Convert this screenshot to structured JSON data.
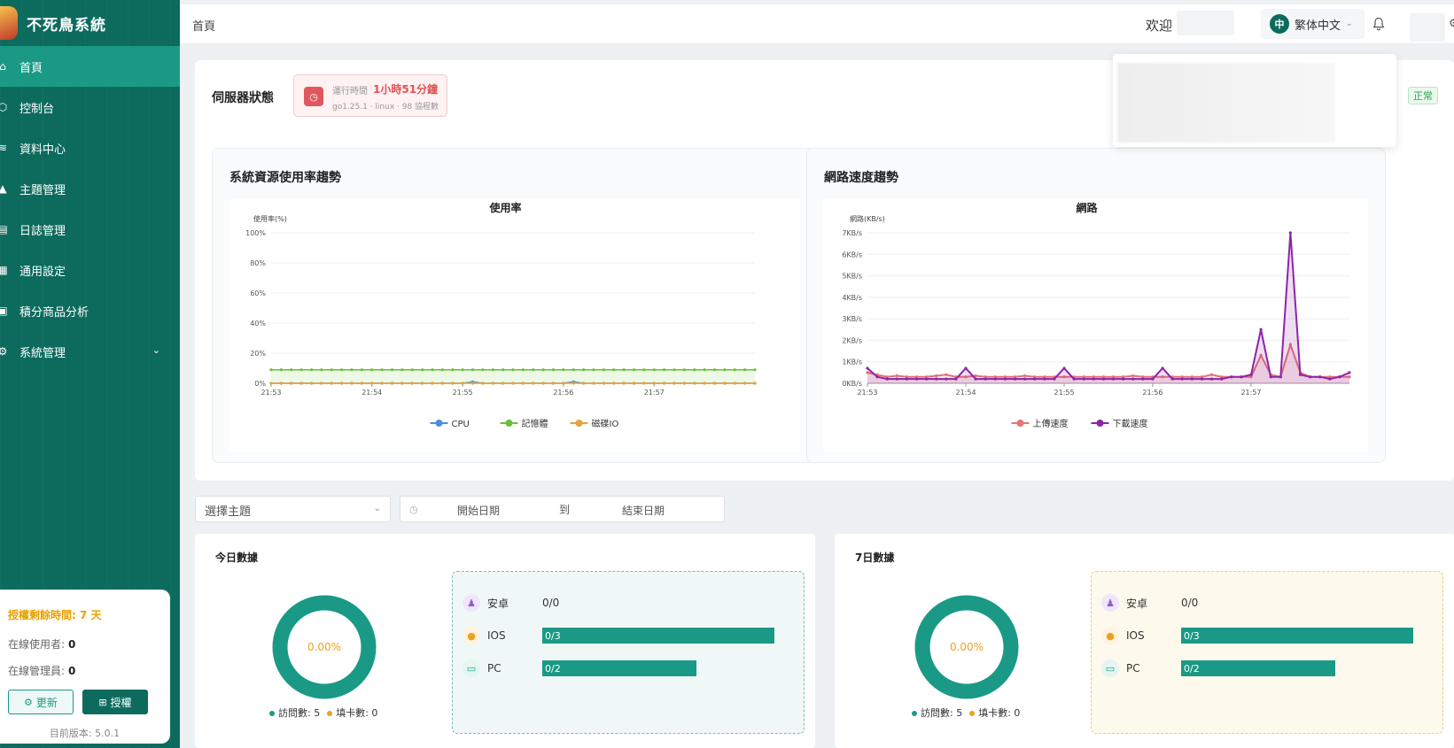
{
  "app": {
    "name": "不死鳥系統"
  },
  "sidebar": {
    "items": [
      {
        "label": "首頁",
        "icon": "home-icon"
      },
      {
        "label": "控制台",
        "icon": "cube-icon"
      },
      {
        "label": "資料中心",
        "icon": "layers-icon"
      },
      {
        "label": "主題管理",
        "icon": "shirt-icon"
      },
      {
        "label": "日誌管理",
        "icon": "log-icon"
      },
      {
        "label": "通用設定",
        "icon": "settings-doc-icon"
      },
      {
        "label": "積分商品分析",
        "icon": "chart-doc-icon"
      },
      {
        "label": "系統管理",
        "icon": "gear-icon"
      }
    ],
    "active_index": 0
  },
  "license": {
    "remaining": "授權剩餘時間: 7 天",
    "online_users_label": "在線使用者:",
    "online_users": "0",
    "online_admins_label": "在線管理員:",
    "online_admins": "0",
    "update_label": "更新",
    "license_label": "授權",
    "version": "目前版本: 5.0.1"
  },
  "header": {
    "breadcrumb": "首頁",
    "welcome": "欢迎",
    "lang_badge": "中",
    "lang": "繁体中文"
  },
  "server": {
    "title": "伺服器狀態",
    "runtime_label": "運行時間",
    "runtime_value": "1小時51分鐘",
    "runtime_sub": "go1.25.1 · linux · 98 協程數",
    "status": "正常"
  },
  "cards": {
    "resource_title": "系統資源使用率趨勢",
    "network_title": "網路速度趨勢"
  },
  "filters": {
    "theme_placeholder": "選擇主題",
    "start_date": "開始日期",
    "separator": "到",
    "end_date": "結束日期"
  },
  "today": {
    "title": "今日數據",
    "percent": "0.00%",
    "visits_label": "訪問數: 5",
    "cards_label": "填卡數: 0",
    "android_label": "安卓",
    "android_value": "0/0",
    "ios_label": "IOS",
    "ios_value": "0/3",
    "pc_label": "PC",
    "pc_value": "0/2"
  },
  "week": {
    "title": "7日數據",
    "percent": "0.00%",
    "visits_label": "訪問數: 5",
    "cards_label": "填卡數: 0",
    "android_label": "安卓",
    "android_value": "0/0",
    "ios_label": "IOS",
    "ios_value": "0/3",
    "pc_label": "PC",
    "pc_value": "0/2"
  },
  "colors": {
    "sidebar": "#0d6b5e",
    "accent": "#1a9a86",
    "cpu": "#4a90e2",
    "memory": "#67c23a",
    "disk": "#e6a23c",
    "upload": "#e57373",
    "download": "#8e24aa"
  },
  "chart_data": [
    {
      "type": "line",
      "title": "使用率",
      "ylabel": "使用率(%)",
      "ylim": [
        0,
        100
      ],
      "yticks": [
        "0%",
        "20%",
        "40%",
        "60%",
        "80%",
        "100%"
      ],
      "xticks": [
        "21:53",
        "21:54",
        "21:55",
        "21:56",
        "21:57"
      ],
      "series": [
        {
          "name": "CPU",
          "values": [
            0,
            0,
            0,
            0,
            0,
            0,
            0,
            0,
            0,
            0,
            0,
            0,
            0,
            0,
            0,
            0,
            0,
            0,
            0,
            0,
            1,
            0,
            0,
            0,
            0,
            0,
            0,
            0,
            0,
            0,
            1,
            0,
            0,
            0,
            0,
            0,
            0,
            0,
            0,
            0,
            0,
            0,
            0,
            0,
            0,
            0,
            0,
            0,
            0
          ]
        },
        {
          "name": "記憶體",
          "values": [
            9,
            9,
            9,
            9,
            9,
            9,
            9,
            9,
            9,
            9,
            9,
            9,
            9,
            9,
            9,
            9,
            9,
            9,
            9,
            9,
            9,
            9,
            9,
            9,
            9,
            9,
            9,
            9,
            9,
            9,
            9,
            9,
            9,
            9,
            9,
            9,
            9,
            9,
            9,
            9,
            9,
            9,
            9,
            9,
            9,
            9,
            9,
            9,
            9
          ]
        },
        {
          "name": "磁碟IO",
          "values": [
            0,
            0,
            0,
            0,
            0,
            0,
            0,
            0,
            0,
            0,
            0,
            0,
            0,
            0,
            0,
            0,
            0,
            0,
            0,
            0,
            0,
            0,
            0,
            0,
            0,
            0,
            0,
            0,
            0,
            0,
            0,
            0,
            0,
            0,
            0,
            0,
            0,
            0,
            0,
            0,
            0,
            0,
            0,
            0,
            0,
            0,
            0,
            0,
            0
          ]
        }
      ],
      "legend_position": "bottom"
    },
    {
      "type": "area",
      "title": "網路",
      "ylabel": "網路(KB/s)",
      "ylim": [
        0,
        7
      ],
      "yticks": [
        "0KB/s",
        "1KB/s",
        "2KB/s",
        "3KB/s",
        "4KB/s",
        "5KB/s",
        "6KB/s",
        "7KB/s"
      ],
      "xticks": [
        "21:53",
        "21:54",
        "21:55",
        "21:56",
        "21:57"
      ],
      "series": [
        {
          "name": "上傳速度",
          "values": [
            0.5,
            0.4,
            0.3,
            0.35,
            0.3,
            0.3,
            0.3,
            0.35,
            0.4,
            0.3,
            0.3,
            0.35,
            0.3,
            0.3,
            0.3,
            0.3,
            0.35,
            0.3,
            0.3,
            0.3,
            0.3,
            0.3,
            0.3,
            0.3,
            0.3,
            0.3,
            0.3,
            0.35,
            0.3,
            0.3,
            0.3,
            0.3,
            0.3,
            0.3,
            0.3,
            0.4,
            0.3,
            0.3,
            0.3,
            0.3,
            1.3,
            0.4,
            0.3,
            1.8,
            0.5,
            0.3,
            0.3,
            0.3,
            0.3,
            0.3
          ]
        },
        {
          "name": "下載速度",
          "values": [
            0.7,
            0.3,
            0.2,
            0.2,
            0.2,
            0.2,
            0.2,
            0.2,
            0.2,
            0.2,
            0.7,
            0.2,
            0.2,
            0.2,
            0.2,
            0.2,
            0.2,
            0.2,
            0.2,
            0.2,
            0.7,
            0.2,
            0.2,
            0.2,
            0.2,
            0.2,
            0.2,
            0.2,
            0.2,
            0.2,
            0.7,
            0.2,
            0.2,
            0.2,
            0.2,
            0.2,
            0.2,
            0.3,
            0.3,
            0.4,
            2.5,
            0.3,
            0.3,
            7.0,
            0.4,
            0.3,
            0.3,
            0.2,
            0.3,
            0.5
          ]
        }
      ],
      "legend_position": "bottom"
    }
  ]
}
